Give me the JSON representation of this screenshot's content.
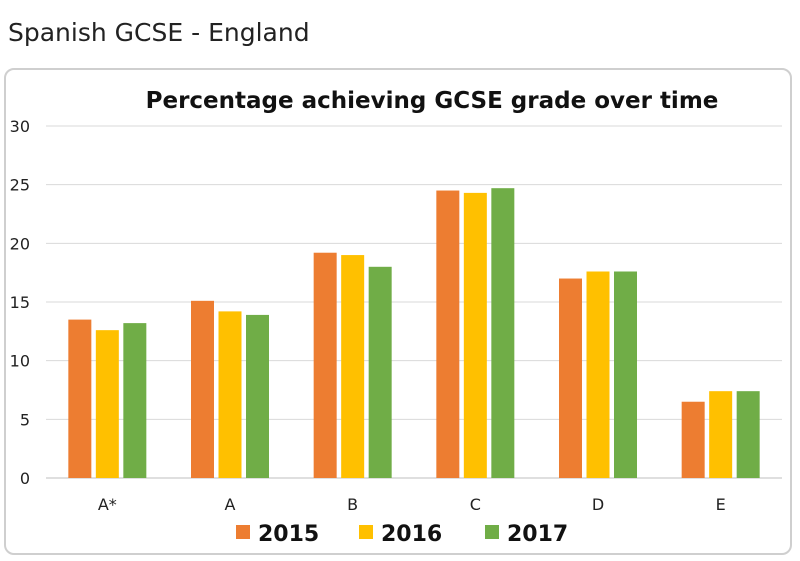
{
  "page": {
    "heading": "Spanish GCSE - England"
  },
  "colors": {
    "2015": "#ED7D31",
    "2016": "#FFC000",
    "2017": "#70AD47",
    "grid": "#d9d9d9",
    "axis": "#bfbfbf"
  },
  "chart_data": {
    "type": "bar",
    "title": "Percentage achieving GCSE grade over time",
    "xlabel": "",
    "ylabel": "",
    "ylim": [
      0,
      30
    ],
    "yticks": [
      0,
      5,
      10,
      15,
      20,
      25,
      30
    ],
    "grid": true,
    "legend_position": "bottom",
    "categories": [
      "A*",
      "A",
      "B",
      "C",
      "D",
      "E"
    ],
    "series": [
      {
        "name": "2015",
        "values": [
          13.5,
          15.1,
          19.2,
          24.5,
          17.0,
          6.5
        ]
      },
      {
        "name": "2016",
        "values": [
          12.6,
          14.2,
          19.0,
          24.3,
          17.6,
          7.4
        ]
      },
      {
        "name": "2017",
        "values": [
          13.2,
          13.9,
          18.0,
          24.7,
          17.6,
          7.4
        ]
      }
    ]
  }
}
